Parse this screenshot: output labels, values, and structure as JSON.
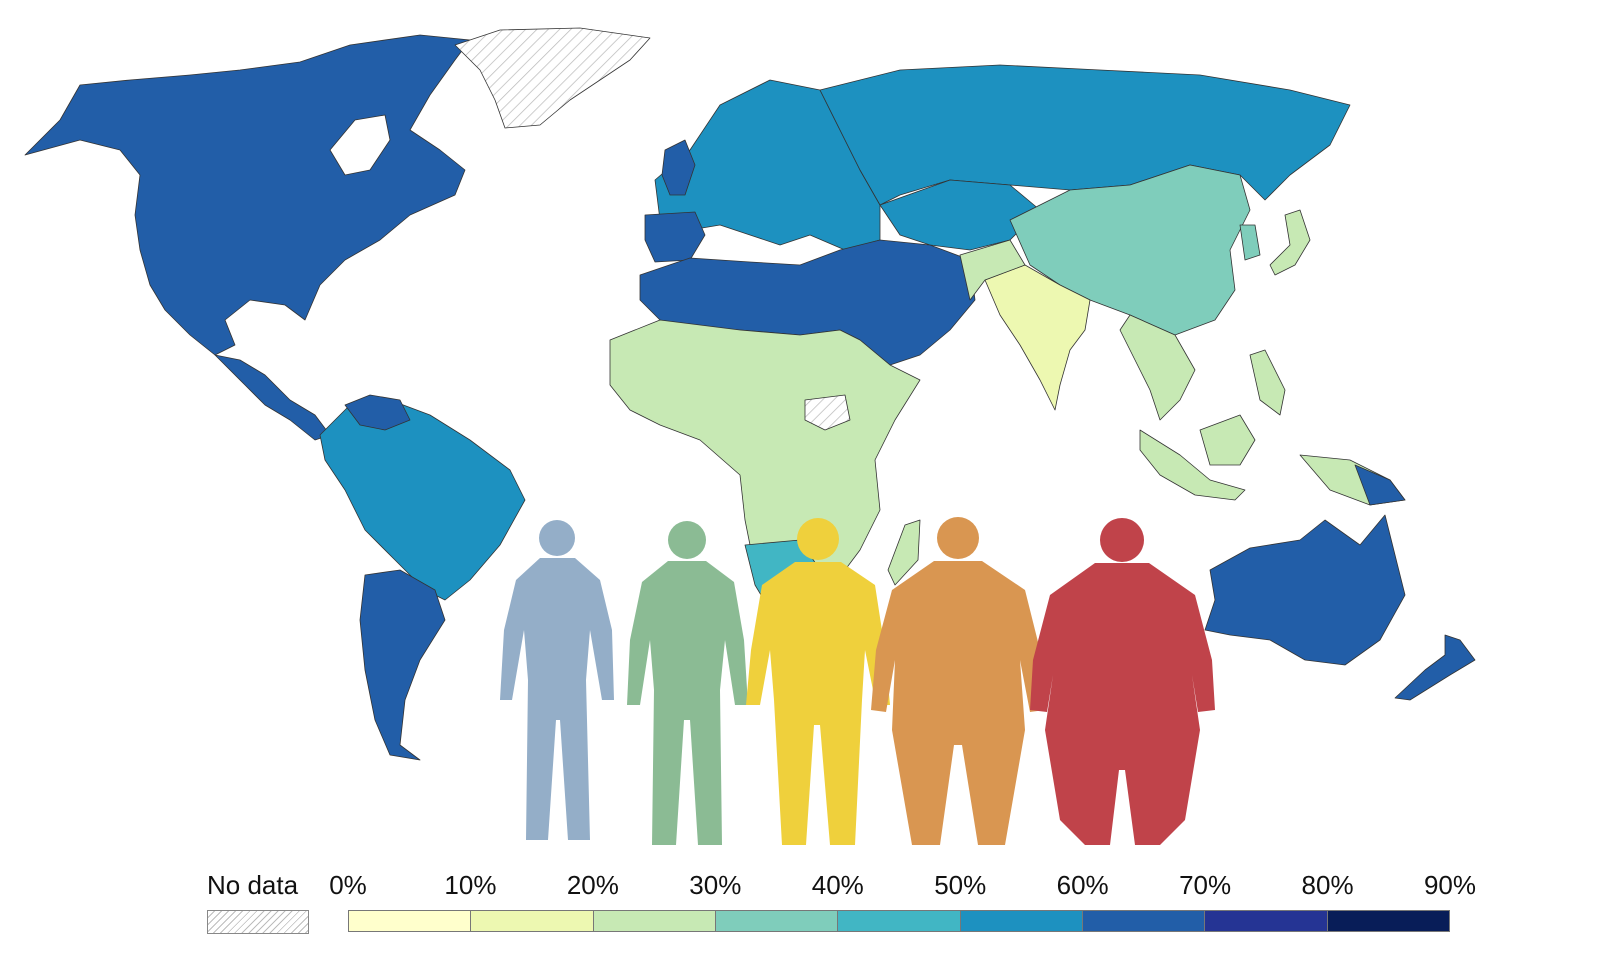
{
  "legend": {
    "no_data_label": "No data",
    "ticks": [
      "0%",
      "10%",
      "20%",
      "30%",
      "40%",
      "50%",
      "60%",
      "70%",
      "80%",
      "90%"
    ],
    "colors": [
      "#ffffcc",
      "#edf8b1",
      "#c7e9b4",
      "#7fcdbb",
      "#41b6c4",
      "#1d91c0",
      "#225ea8",
      "#253494",
      "#081d58"
    ]
  },
  "regions": [
    {
      "name": "north-america",
      "color": "#225ea8"
    },
    {
      "name": "central-america",
      "color": "#225ea8"
    },
    {
      "name": "greenland",
      "color": "no-data"
    },
    {
      "name": "south-america-north",
      "color": "#1d91c0"
    },
    {
      "name": "argentina-chile",
      "color": "#225ea8"
    },
    {
      "name": "europe",
      "color": "#1d91c0"
    },
    {
      "name": "russia",
      "color": "#1d91c0"
    },
    {
      "name": "north-africa-middle-east",
      "color": "#225ea8"
    },
    {
      "name": "sub-saharan-africa",
      "color": "#c7e9b4"
    },
    {
      "name": "south-sudan",
      "color": "no-data"
    },
    {
      "name": "china",
      "color": "#7fcdbb"
    },
    {
      "name": "india",
      "color": "#edf8b1"
    },
    {
      "name": "southeast-asia",
      "color": "#c7e9b4"
    },
    {
      "name": "japan",
      "color": "#c7e9b4"
    },
    {
      "name": "australia",
      "color": "#225ea8"
    },
    {
      "name": "new-zealand",
      "color": "#225ea8"
    }
  ],
  "figures": [
    {
      "name": "underweight",
      "color": "#94aec8"
    },
    {
      "name": "normal",
      "color": "#8bbb94"
    },
    {
      "name": "overweight",
      "color": "#efd03c"
    },
    {
      "name": "obese",
      "color": "#d99651"
    },
    {
      "name": "extremely-obese",
      "color": "#c0434a"
    }
  ]
}
